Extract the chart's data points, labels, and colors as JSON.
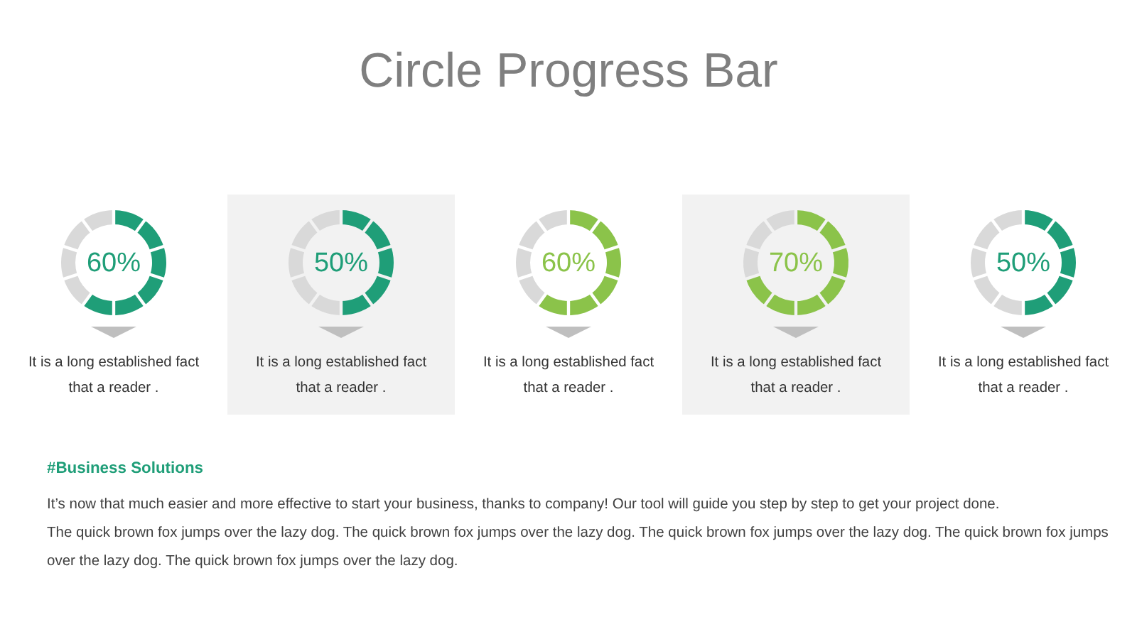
{
  "chart_data": [
    {
      "type": "other",
      "title": "Circle Progress Bar"
    },
    {
      "type": "donut",
      "categories": [
        null,
        null
      ],
      "values": [
        60,
        40
      ],
      "colors": [
        "#1f9e78",
        "#d9d9d9"
      ],
      "value_labels": [
        "60%",
        null
      ],
      "annotations": [
        "It is a long established fact that a reader ."
      ]
    },
    {
      "type": "donut",
      "categories": [
        null,
        null
      ],
      "values": [
        50,
        50
      ],
      "colors": [
        "#1f9e78",
        "#d9d9d9"
      ],
      "value_labels": [
        "50%",
        null
      ],
      "annotations": [
        "It is a long established fact that a reader ."
      ]
    },
    {
      "type": "donut",
      "categories": [
        null,
        null
      ],
      "values": [
        60,
        40
      ],
      "colors": [
        "#8bc34a",
        "#d9d9d9"
      ],
      "value_labels": [
        "60%",
        null
      ],
      "annotations": [
        "It is a long established fact that a reader ."
      ]
    },
    {
      "type": "donut",
      "categories": [
        null,
        null
      ],
      "values": [
        70,
        30
      ],
      "colors": [
        "#8bc34a",
        "#d9d9d9"
      ],
      "value_labels": [
        "70%",
        null
      ],
      "annotations": [
        "It is a long established fact that a reader ."
      ]
    },
    {
      "type": "donut",
      "categories": [
        null,
        null
      ],
      "values": [
        50,
        50
      ],
      "colors": [
        "#1f9e78",
        "#d9d9d9"
      ],
      "value_labels": [
        "50%",
        null
      ],
      "annotations": [
        "It is a long established fact that a reader ."
      ]
    },
    {
      "type": "other",
      "title": "#Business Solutions",
      "annotations": [
        "It’s now that much easier and more effective to start your business, thanks to company! Our tool will guide you step by step to get your project done.",
        "The quick brown fox jumps over the lazy dog. The quick brown fox jumps over the lazy dog. The quick brown fox jumps over the lazy dog. The quick brown fox jumps over the lazy dog. The quick brown fox jumps over the lazy dog."
      ]
    }
  ]
}
